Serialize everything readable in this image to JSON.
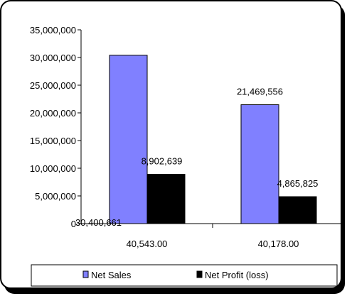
{
  "chart_data": {
    "type": "bar",
    "title": "",
    "xlabel": "",
    "ylabel": "",
    "categories": [
      "40,543.00",
      "40,178.00"
    ],
    "series": [
      {
        "name": "Net Sales",
        "color": "#8080ff",
        "values": [
          30400661,
          21469556
        ],
        "labels": [
          "30,400,661",
          "21,469,556"
        ]
      },
      {
        "name": "Net Profit (loss)",
        "color": "#000000",
        "values": [
          8902639,
          4865825
        ],
        "labels": [
          "8,902,639",
          "4,865,825"
        ]
      }
    ],
    "ylim": [
      0,
      35000000
    ],
    "yticks": [
      0,
      5000000,
      10000000,
      15000000,
      20000000,
      25000000,
      30000000,
      35000000
    ],
    "ytick_labels": [
      "0",
      "5,000,000",
      "10,000,000",
      "15,000,000",
      "20,000,000",
      "25,000,000",
      "30,000,000",
      "35,000,000"
    ],
    "grid": false,
    "legend_position": "bottom"
  }
}
